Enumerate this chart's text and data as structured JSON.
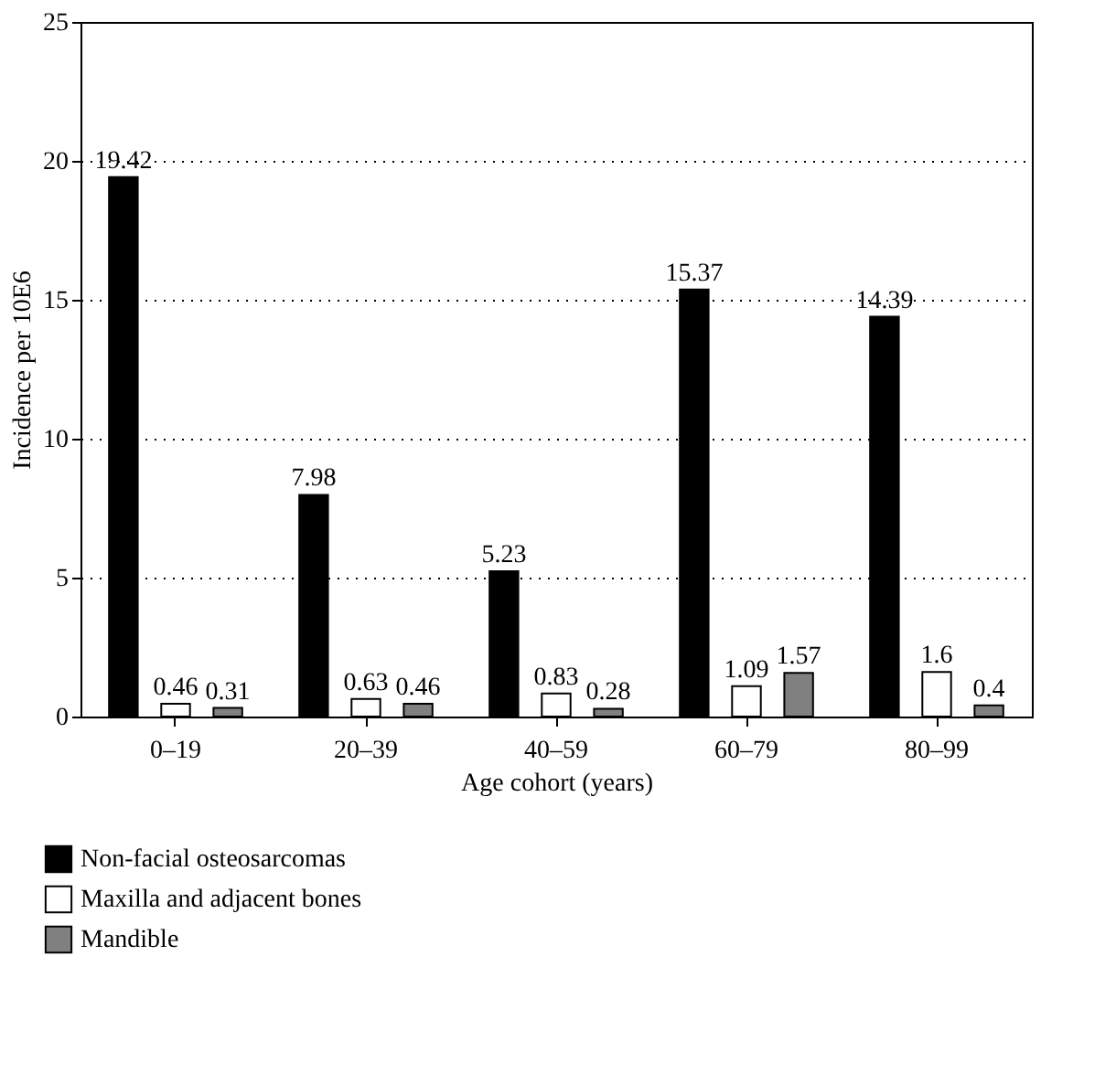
{
  "chart_data": {
    "type": "bar",
    "xlabel": "Age cohort (years)",
    "ylabel": "Incidence per 10E6",
    "categories": [
      "0–19",
      "20–39",
      "40–59",
      "60–79",
      "80–99"
    ],
    "series": [
      {
        "name": "Non-facial osteosarcomas",
        "color": "#000000",
        "values": [
          19.42,
          7.98,
          5.23,
          15.37,
          14.39
        ]
      },
      {
        "name": "Maxilla and adjacent bones",
        "color": "#ffffff",
        "values": [
          0.46,
          0.63,
          0.83,
          1.09,
          1.6
        ]
      },
      {
        "name": "Mandible",
        "color": "#808080",
        "values": [
          0.31,
          0.46,
          0.28,
          1.57,
          0.4
        ]
      }
    ],
    "ylim": [
      0,
      25
    ],
    "yticks": [
      0,
      5,
      10,
      15,
      20,
      25
    ],
    "grid": "y",
    "legend": "bottom",
    "data_labels": true
  }
}
